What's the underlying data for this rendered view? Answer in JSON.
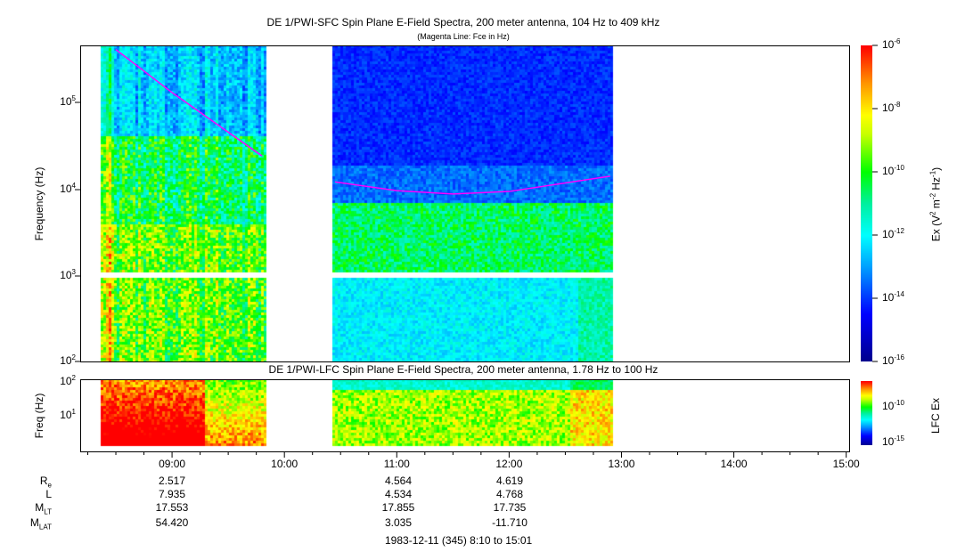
{
  "chart_data": [
    {
      "type": "heatmap",
      "title": "DE 1/PWI-SFC  Spin Plane E-Field Spectra, 200 meter antenna, 104 Hz to 409 kHz",
      "subtitle": "(Magenta Line: Fce in Hz)",
      "ylabel": "Frequency (Hz)",
      "yscale": "log",
      "ylim": [
        100,
        409000
      ],
      "yticks": [
        "10",
        "10",
        "10",
        "10"
      ],
      "ytick_exp": [
        "2",
        "3",
        "4",
        "5"
      ],
      "colorbar": {
        "label": "Ex (V",
        "label2": "2",
        "label3": " m",
        "label4": "-2",
        "label5": " Hz",
        "label6": "-1",
        "label7": ")",
        "ticks": [
          "10",
          "10",
          "10",
          "10",
          "10",
          "10"
        ],
        "tick_exp": [
          "-6",
          "-8",
          "-10",
          "-12",
          "-14",
          "-16"
        ],
        "range": [
          1e-16,
          1e-06
        ]
      },
      "data_intervals": [
        [
          "08:20",
          "09:48"
        ],
        [
          "10:25",
          "12:55"
        ]
      ],
      "fce_line": {
        "color": "#ff00ff",
        "points": [
          [
            8.5,
            409000
          ],
          [
            9.0,
            130000
          ],
          [
            9.8,
            24000
          ],
          [
            10.45,
            12000
          ],
          [
            11.0,
            9500
          ],
          [
            11.5,
            8700
          ],
          [
            12.0,
            9300
          ],
          [
            12.9,
            14000
          ]
        ]
      }
    },
    {
      "type": "heatmap",
      "title": "DE 1/PWI-LFC  Spin Plane E-Field Spectra, 200 meter antenna, 1.78 Hz to 100 Hz",
      "ylabel": "Freq (Hz)",
      "yscale": "log",
      "ylim": [
        1.78,
        100
      ],
      "yticks": [
        "10",
        "10"
      ],
      "ytick_exp": [
        "2",
        "1"
      ],
      "colorbar": {
        "label": "LFC Ex",
        "ticks": [
          "10",
          "10"
        ],
        "tick_exp": [
          "-10",
          "-15"
        ]
      }
    }
  ],
  "xaxis": {
    "ticks": [
      "09:00",
      "10:00",
      "11:00",
      "12:00",
      "13:00",
      "14:00",
      "15:00"
    ],
    "range": [
      "08:10",
      "15:01"
    ]
  },
  "ephemeris": {
    "labels": [
      {
        "main": "R",
        "sub": "e"
      },
      {
        "main": "L",
        "sub": ""
      },
      {
        "main": "M",
        "sub": "LT"
      },
      {
        "main": "M",
        "sub": "LAT"
      }
    ],
    "columns": [
      [
        "2.517",
        "7.935",
        "17.553",
        "54.420"
      ],
      [
        "4.564",
        "4.534",
        "17.855",
        "3.035"
      ],
      [
        "4.619",
        "4.768",
        "17.735",
        "-11.710"
      ]
    ]
  },
  "footer": "1983-12-11 (345) 8:10 to 15:01"
}
